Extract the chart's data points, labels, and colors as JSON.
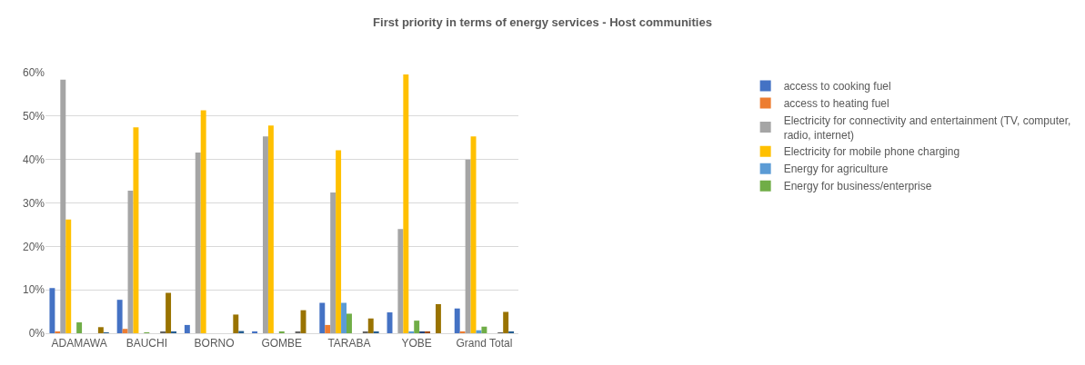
{
  "chart_data": {
    "type": "bar",
    "title": "First priority in terms of energy services - Host communities",
    "categories": [
      "ADAMAWA",
      "BAUCHI",
      "BORNO",
      "GOMBE",
      "TARABA",
      "YOBE",
      "Grand Total"
    ],
    "series": [
      {
        "name": "access to cooking fuel",
        "color": "#4472c4",
        "values": [
          10.4,
          7.7,
          1.9,
          0.3,
          7.0,
          4.8,
          5.7
        ]
      },
      {
        "name": "access to heating fuel",
        "color": "#ed7d31",
        "values": [
          0.3,
          1.0,
          0,
          0,
          1.9,
          0,
          0.3
        ]
      },
      {
        "name": "Electricity for connectivity and entertainment (TV, computer, radio, internet)",
        "color": "#a5a5a5",
        "values": [
          58.4,
          32.8,
          41.6,
          45.3,
          32.4,
          24.0,
          40.0
        ]
      },
      {
        "name": "Electricity for mobile phone charging",
        "color": "#ffc000",
        "values": [
          26.2,
          47.4,
          51.3,
          47.8,
          42.1,
          59.6,
          45.3
        ]
      },
      {
        "name": "Energy for agriculture",
        "color": "#5b9bd5",
        "values": [
          0,
          0,
          0,
          0,
          7.0,
          0.3,
          0.7
        ]
      },
      {
        "name": "Energy for business/enterprise",
        "color": "#70ad47",
        "values": [
          2.5,
          0.1,
          0,
          0.3,
          4.5,
          2.9,
          1.5
        ]
      },
      {
        "color": "#264478",
        "values": [
          0,
          0,
          0,
          0,
          0,
          0.3,
          0
        ]
      },
      {
        "color": "#9e480e",
        "values": [
          0,
          0,
          0,
          0,
          0,
          0.3,
          0
        ]
      },
      {
        "color": "#636363",
        "values": [
          0,
          0.4,
          0,
          0.3,
          0.3,
          0,
          0.1
        ]
      },
      {
        "color": "#997300",
        "values": [
          1.4,
          9.3,
          4.3,
          5.3,
          3.4,
          6.7,
          4.9
        ]
      },
      {
        "color": "#255e91",
        "values": [
          0.1,
          0.4,
          0.5,
          0,
          0.3,
          0,
          0.3
        ]
      }
    ],
    "ylim": [
      0,
      60
    ],
    "yticks": [
      {
        "value": 0,
        "label": "0%"
      },
      {
        "value": 10,
        "label": "10%"
      },
      {
        "value": 20,
        "label": "20%"
      },
      {
        "value": 30,
        "label": "30%"
      },
      {
        "value": 40,
        "label": "40%"
      },
      {
        "value": 50,
        "label": "50%"
      },
      {
        "value": 60,
        "label": "60%"
      }
    ],
    "grid": "y",
    "legend": "right"
  }
}
